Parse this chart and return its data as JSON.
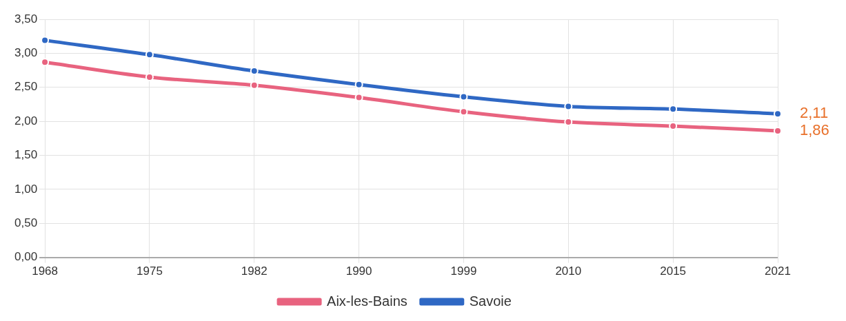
{
  "chart_data": {
    "type": "line",
    "categories": [
      "1968",
      "1975",
      "1982",
      "1990",
      "1999",
      "2010",
      "2015",
      "2021"
    ],
    "series": [
      {
        "name": "Aix-les-Bains",
        "color": "#e8637f",
        "values": [
          2.87,
          2.65,
          2.53,
          2.35,
          2.14,
          1.99,
          1.93,
          1.86
        ]
      },
      {
        "name": "Savoie",
        "color": "#2f68c4",
        "values": [
          3.19,
          2.98,
          2.74,
          2.54,
          2.36,
          2.22,
          2.18,
          2.11
        ]
      }
    ],
    "ylim": [
      0,
      3.5
    ],
    "yticks": [
      {
        "value": 0,
        "label": "0,00"
      },
      {
        "value": 0.5,
        "label": "0,50"
      },
      {
        "value": 1,
        "label": "1,00"
      },
      {
        "value": 1.5,
        "label": "1,50"
      },
      {
        "value": 2,
        "label": "2,00"
      },
      {
        "value": 2.5,
        "label": "2,50"
      },
      {
        "value": 3,
        "label": "3,00"
      },
      {
        "value": 3.5,
        "label": "3,50"
      }
    ],
    "annotations": [
      {
        "text": "2,11",
        "x": "2021",
        "y": 2.11
      },
      {
        "text": "1,86",
        "x": "2021",
        "y": 1.86
      }
    ],
    "grid": true,
    "legend": "bottom",
    "marker": "circle",
    "line_style": "solid"
  }
}
